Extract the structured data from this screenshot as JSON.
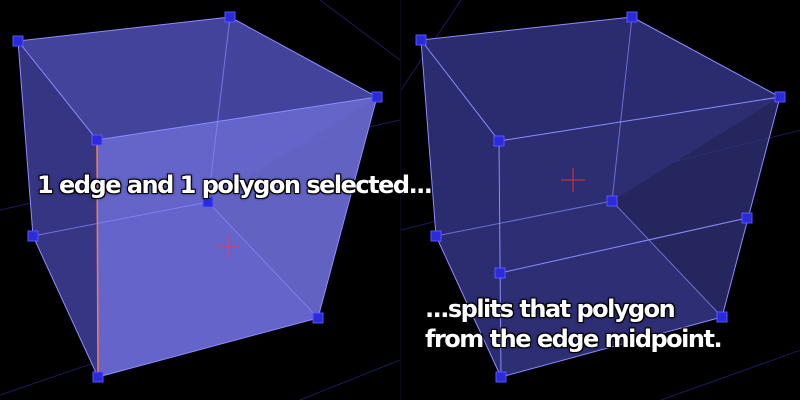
{
  "left_viewport": {
    "caption": "1 edge and 1 polygon selected...",
    "selected_edge_color": "#ff7a45",
    "selected_polygon_color": "#6a6ad4"
  },
  "right_viewport": {
    "caption_line1": "...splits that polygon",
    "caption_line2": "from the edge midpoint."
  },
  "colors": {
    "background": "#000000",
    "wire": "#8c8cff",
    "vertex": "#2b2bdc",
    "face_fill": "#2a2a6a",
    "pivot_left": "#d8406a",
    "pivot_right": "#e0303a",
    "grid_line": "#1c1c5a"
  }
}
